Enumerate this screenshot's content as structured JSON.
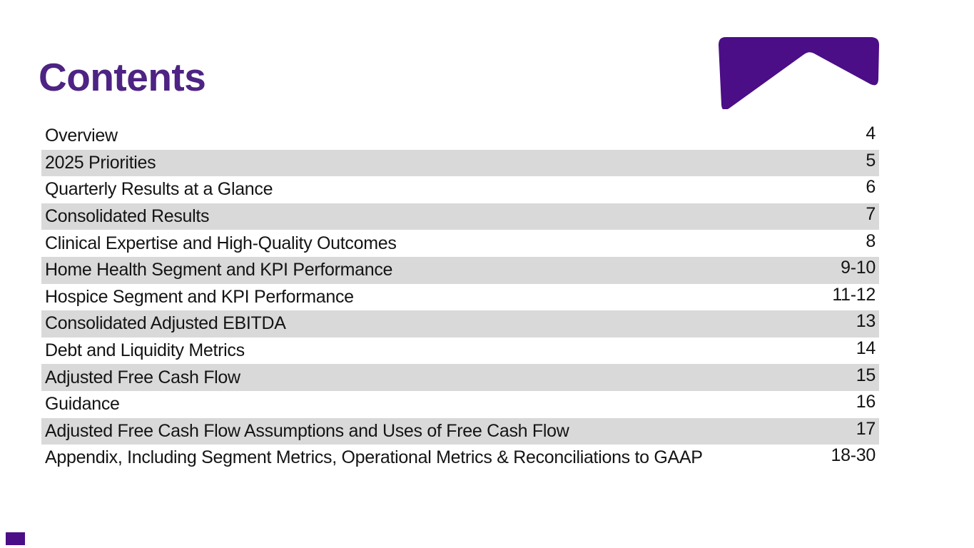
{
  "slide": {
    "title": "Contents"
  },
  "colors": {
    "brand_purple": "#4B0E86",
    "title_purple": "#4D2383",
    "row_stripe_gray": "#D9D9D9",
    "text_color": "#141414"
  },
  "toc": {
    "items": [
      {
        "label": "Overview",
        "pages": "4"
      },
      {
        "label": "2025 Priorities",
        "pages": "5"
      },
      {
        "label": "Quarterly Results at a Glance",
        "pages": "6"
      },
      {
        "label": "Consolidated Results",
        "pages": "7"
      },
      {
        "label": "Clinical Expertise and High-Quality Outcomes",
        "pages": "8"
      },
      {
        "label": "Home Health Segment and KPI Performance",
        "pages": "9-10"
      },
      {
        "label": "Hospice Segment and KPI Performance",
        "pages": "11-12"
      },
      {
        "label": "Consolidated Adjusted EBITDA",
        "pages": "13"
      },
      {
        "label": "Debt and Liquidity Metrics",
        "pages": "14"
      },
      {
        "label": "Adjusted Free Cash Flow",
        "pages": "15"
      },
      {
        "label": "Guidance",
        "pages": "16"
      },
      {
        "label": "Adjusted Free Cash Flow Assumptions and Uses of Free Cash Flow",
        "pages": "17"
      },
      {
        "label": "Appendix, Including Segment Metrics, Operational Metrics & Reconciliations to GAAP",
        "pages": "18-30"
      }
    ]
  }
}
